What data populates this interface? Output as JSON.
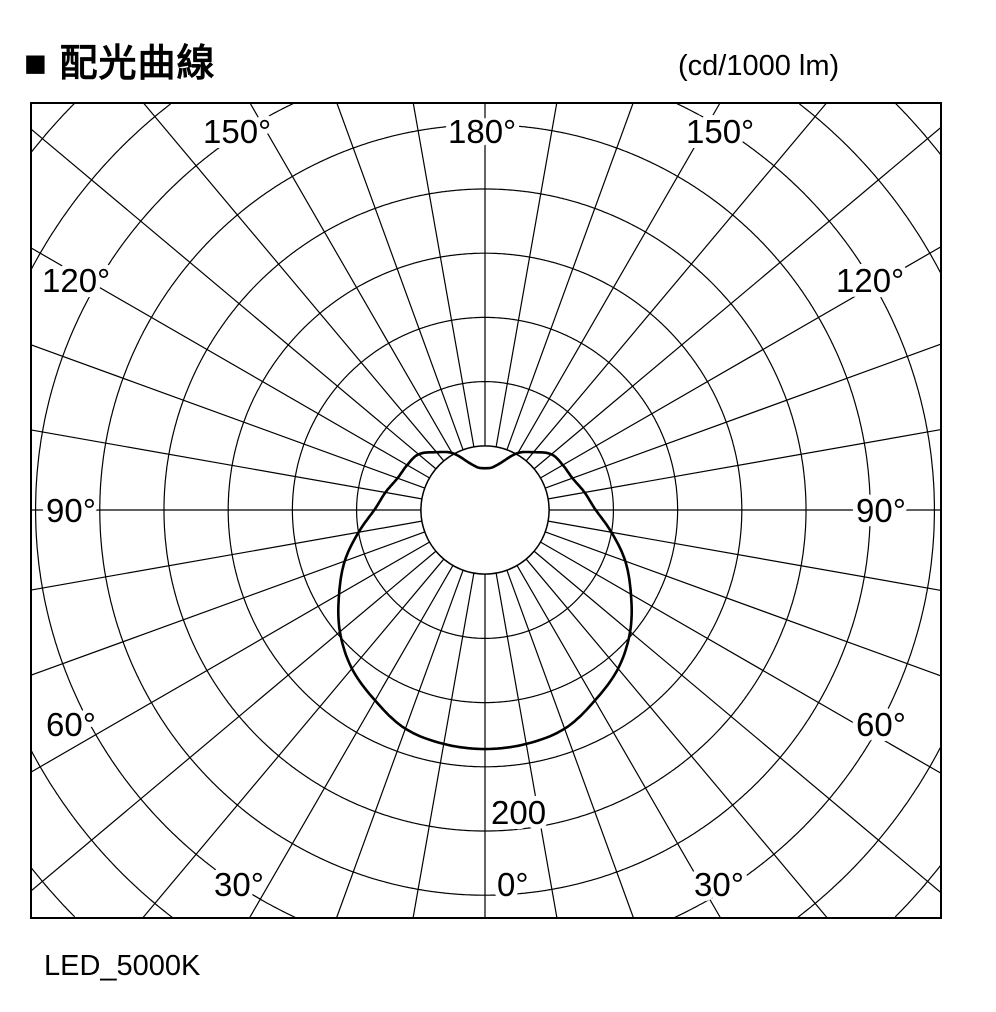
{
  "title": "■ 配光曲線",
  "unit": "(cd/1000 lm)",
  "caption": "LED_5000K",
  "chart_data": {
    "type": "polar",
    "title": "配光曲線",
    "unit_label": "(cd/1000 lm)",
    "series_label": "LED_5000K",
    "radial_tick_label": "200",
    "radial_tick_value": 200,
    "ring_step": 40,
    "ray_step_deg": 10,
    "angle_labels": {
      "top_left": "150°",
      "top": "180°",
      "top_right": "150°",
      "upper_left": "120°",
      "upper_right": "120°",
      "mid_left": "90°",
      "mid_right": "90°",
      "lower_left": "60°",
      "lower_right": "60°",
      "bottom_left": "30°",
      "bottom": "0°",
      "bottom_right": "30°"
    },
    "symmetric": true,
    "angles_deg": [
      0,
      10,
      20,
      30,
      40,
      50,
      60,
      70,
      80,
      90,
      100,
      110,
      120,
      130,
      140,
      150,
      160,
      170,
      180
    ],
    "intensity_cd": [
      149,
      148,
      145,
      137,
      129,
      118,
      105,
      93,
      80,
      69,
      63,
      58,
      56,
      54,
      47,
      41,
      32,
      27,
      26
    ],
    "line_color": "#000000",
    "grid": true
  }
}
